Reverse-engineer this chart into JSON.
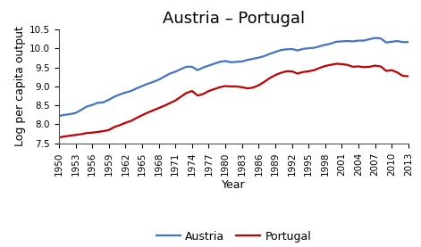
{
  "title": "Austria – Portugal",
  "xlabel": "Year",
  "ylabel": "Log per capita output",
  "ylim": [
    7.5,
    10.5
  ],
  "yticks": [
    7.5,
    8.0,
    8.5,
    9.0,
    9.5,
    10.0,
    10.5
  ],
  "xtick_years": [
    1950,
    1953,
    1956,
    1959,
    1962,
    1965,
    1968,
    1971,
    1974,
    1977,
    1980,
    1983,
    1986,
    1989,
    1992,
    1995,
    1998,
    2001,
    2004,
    2007,
    2010,
    2013
  ],
  "austria_color": "#4472C4",
  "portugal_color": "#C00000",
  "line_width": 1.6,
  "austria": {
    "years": [
      1950,
      1951,
      1952,
      1953,
      1954,
      1955,
      1956,
      1957,
      1958,
      1959,
      1960,
      1961,
      1962,
      1963,
      1964,
      1965,
      1966,
      1967,
      1968,
      1969,
      1970,
      1971,
      1972,
      1973,
      1974,
      1975,
      1976,
      1977,
      1978,
      1979,
      1980,
      1981,
      1982,
      1983,
      1984,
      1985,
      1986,
      1987,
      1988,
      1989,
      1990,
      1991,
      1992,
      1993,
      1994,
      1995,
      1996,
      1997,
      1998,
      1999,
      2000,
      2001,
      2002,
      2003,
      2004,
      2005,
      2006,
      2007,
      2008,
      2009,
      2010,
      2011,
      2012,
      2013
    ],
    "values": [
      8.22,
      8.25,
      8.27,
      8.3,
      8.38,
      8.47,
      8.51,
      8.57,
      8.58,
      8.65,
      8.73,
      8.79,
      8.84,
      8.88,
      8.95,
      9.01,
      9.07,
      9.12,
      9.18,
      9.26,
      9.34,
      9.39,
      9.46,
      9.52,
      9.52,
      9.43,
      9.5,
      9.55,
      9.6,
      9.65,
      9.67,
      9.64,
      9.65,
      9.66,
      9.7,
      9.73,
      9.76,
      9.8,
      9.86,
      9.91,
      9.96,
      9.98,
      9.99,
      9.95,
      9.99,
      10.01,
      10.02,
      10.06,
      10.1,
      10.13,
      10.18,
      10.19,
      10.2,
      10.19,
      10.21,
      10.21,
      10.25,
      10.28,
      10.27,
      10.16,
      10.18,
      10.2,
      10.17,
      10.17
    ]
  },
  "portugal": {
    "years": [
      1950,
      1951,
      1952,
      1953,
      1954,
      1955,
      1956,
      1957,
      1958,
      1959,
      1960,
      1961,
      1962,
      1963,
      1964,
      1965,
      1966,
      1967,
      1968,
      1969,
      1970,
      1971,
      1972,
      1973,
      1974,
      1975,
      1976,
      1977,
      1978,
      1979,
      1980,
      1981,
      1982,
      1983,
      1984,
      1985,
      1986,
      1987,
      1988,
      1989,
      1990,
      1991,
      1992,
      1993,
      1994,
      1995,
      1996,
      1997,
      1998,
      1999,
      2000,
      2001,
      2002,
      2003,
      2004,
      2005,
      2006,
      2007,
      2008,
      2009,
      2010,
      2011,
      2012,
      2013
    ],
    "values": [
      7.65,
      7.68,
      7.7,
      7.72,
      7.74,
      7.77,
      7.78,
      7.8,
      7.82,
      7.85,
      7.93,
      7.98,
      8.04,
      8.09,
      8.17,
      8.24,
      8.31,
      8.37,
      8.43,
      8.49,
      8.56,
      8.63,
      8.73,
      8.83,
      8.88,
      8.76,
      8.8,
      8.88,
      8.93,
      8.98,
      9.01,
      9.0,
      9.0,
      8.98,
      8.95,
      8.97,
      9.03,
      9.12,
      9.22,
      9.3,
      9.36,
      9.4,
      9.4,
      9.34,
      9.38,
      9.4,
      9.43,
      9.49,
      9.54,
      9.57,
      9.6,
      9.59,
      9.57,
      9.52,
      9.53,
      9.51,
      9.52,
      9.55,
      9.53,
      9.41,
      9.43,
      9.37,
      9.28,
      9.27
    ]
  },
  "legend_entries": [
    "Austria",
    "Portugal"
  ],
  "background_color": "#ffffff",
  "title_fontsize": 13,
  "axis_label_fontsize": 9,
  "tick_fontsize": 7.5,
  "legend_fontsize": 9
}
